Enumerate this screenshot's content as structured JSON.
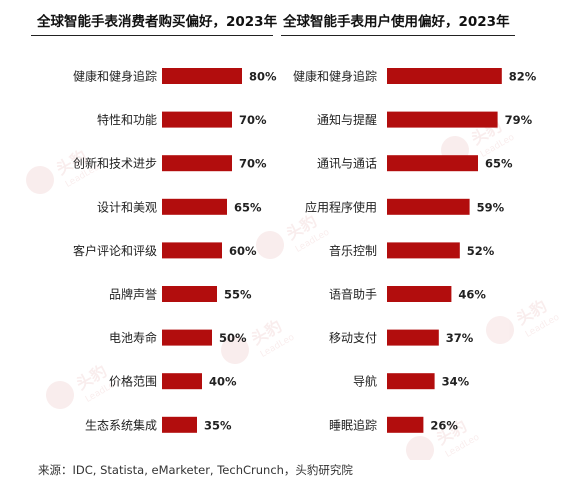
{
  "colors": {
    "bar": "#b20d0d",
    "text": "#222222",
    "background": "#ffffff"
  },
  "source_text": "来源：IDC, Statista, eMarketer, TechCrunch，头豹研究院",
  "watermark_text": "头豹 LeadLeo",
  "chart_data": [
    {
      "type": "bar",
      "orientation": "horizontal",
      "title": "全球智能手表消费者购买偏好，2023年",
      "categories": [
        "健康和健身追踪",
        "特性和功能",
        "创新和技术进步",
        "设计和美观",
        "客户评论和评级",
        "品牌声誉",
        "电池寿命",
        "价格范围",
        "生态系统集成"
      ],
      "values": [
        80,
        70,
        70,
        65,
        60,
        55,
        50,
        40,
        35
      ],
      "value_labels": [
        "80%",
        "70%",
        "70%",
        "65%",
        "60%",
        "55%",
        "50%",
        "40%",
        "35%"
      ],
      "unit": "%",
      "xlim": [
        0,
        100
      ],
      "grid": false,
      "legend": "none"
    },
    {
      "type": "bar",
      "orientation": "horizontal",
      "title": "全球智能手表用户使用偏好，2023年",
      "categories": [
        "健康和健身追踪",
        "通知与提醒",
        "通讯与通话",
        "应用程序使用",
        "音乐控制",
        "语音助手",
        "移动支付",
        "导航",
        "睡眠追踪"
      ],
      "values": [
        82,
        79,
        65,
        59,
        52,
        46,
        37,
        34,
        26
      ],
      "value_labels": [
        "82%",
        "79%",
        "65%",
        "59%",
        "52%",
        "46%",
        "37%",
        "34%",
        "26%"
      ],
      "unit": "%",
      "xlim": [
        0,
        100
      ],
      "grid": false,
      "legend": "none"
    }
  ]
}
